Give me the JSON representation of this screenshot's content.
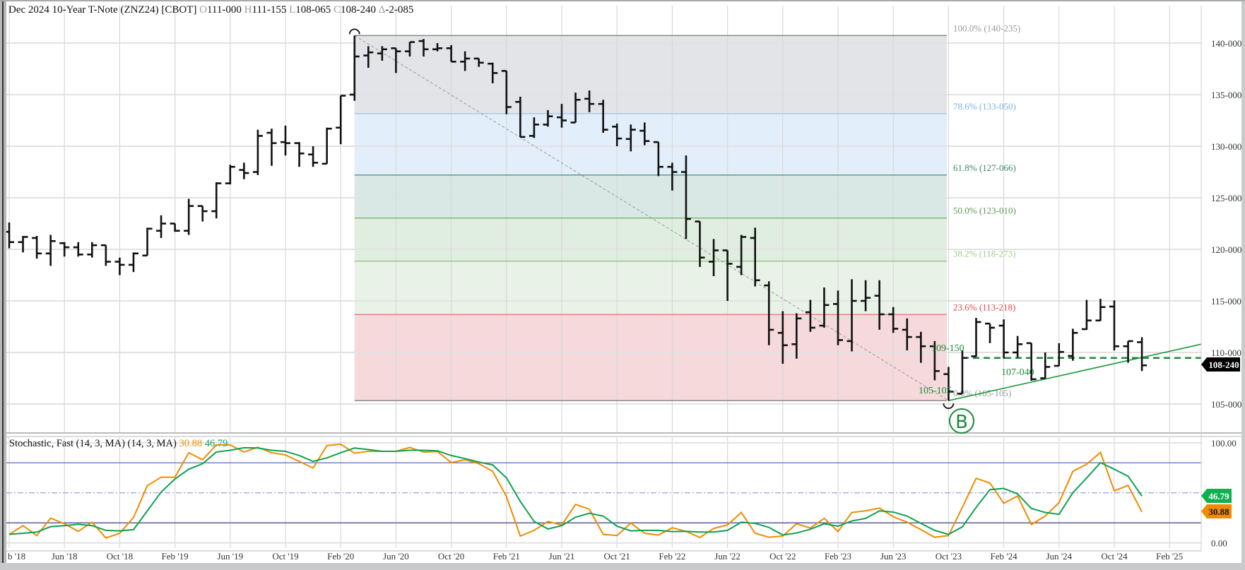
{
  "header": {
    "title": "Dec 2024 10-Year T-Note (ZNZ24) [CBOT]",
    "o_label": "O",
    "o_value": "111-000",
    "h_label": "H",
    "h_value": "111-155",
    "l_label": "L",
    "l_value": "108-065",
    "c_label": "C",
    "c_value": "108-240",
    "d_label": "Δ",
    "d_value": "-2-085"
  },
  "stochastic": {
    "title": "Stochastic, Fast (14, 3, MA)  (14, 3, MA)",
    "k_value": "30.88",
    "d_value": "46.79"
  },
  "price_badge": "108-240",
  "annotations": {
    "dashed_level": "109-150",
    "trend_level": "107-040",
    "low_level": "105-105",
    "marker": "B"
  },
  "colors": {
    "k_line": "#f08c00",
    "d_line": "#10a050",
    "bars": "#111111",
    "annot": "#1a8a3a"
  },
  "chart_data": [
    {
      "type": "ohlc",
      "title": "Dec 2024 10-Year T-Note (ZNZ24) [CBOT]",
      "period": "monthly",
      "first_bar": "Feb '18",
      "x_tick_labels": [
        "b '18",
        "Jun '18",
        "Oct '18",
        "Feb '19",
        "Jun '19",
        "Oct '19",
        "Feb '20",
        "Jun '20",
        "Oct '20",
        "Feb '21",
        "Jun '21",
        "Oct '21",
        "Feb '22",
        "Jun '22",
        "Oct '22",
        "Feb '23",
        "Jun '23",
        "Oct '23",
        "Feb '24",
        "Jun '24",
        "Oct '24",
        "Feb '25"
      ],
      "y_tick_labels": [
        "140-000",
        "135-000",
        "130-000",
        "125-000",
        "120-000",
        "115-000",
        "110-000",
        "105-000"
      ],
      "y_ticks": [
        140,
        135,
        130,
        125,
        120,
        115,
        110,
        105
      ],
      "ylim": [
        102.9,
        143.4
      ],
      "bars_ohlc": [
        [
          121.7,
          122.6,
          120.1,
          120.7
        ],
        [
          120.7,
          121.3,
          119.7,
          121.2
        ],
        [
          121.1,
          121.3,
          119.1,
          119.6
        ],
        [
          119.6,
          121.4,
          118.4,
          120.8
        ],
        [
          120.6,
          120.7,
          119.3,
          120.2
        ],
        [
          120.2,
          120.7,
          119.3,
          119.5
        ],
        [
          119.5,
          120.7,
          119.2,
          120.4
        ],
        [
          120.4,
          120.4,
          118.4,
          118.8
        ],
        [
          118.8,
          119.2,
          117.5,
          118.5
        ],
        [
          118.5,
          119.7,
          117.8,
          119.6
        ],
        [
          119.4,
          122.1,
          119.4,
          122.0
        ],
        [
          121.8,
          123.3,
          121.1,
          122.5
        ],
        [
          122.5,
          122.5,
          121.7,
          121.8
        ],
        [
          121.8,
          124.9,
          121.4,
          124.2
        ],
        [
          124.2,
          124.2,
          122.7,
          123.7
        ],
        [
          123.7,
          126.5,
          123.0,
          126.4
        ],
        [
          126.4,
          128.2,
          126.3,
          128.0
        ],
        [
          127.7,
          128.4,
          126.8,
          127.4
        ],
        [
          127.5,
          131.6,
          127.2,
          131.0
        ],
        [
          131.3,
          131.7,
          128.1,
          130.3
        ],
        [
          130.4,
          132.0,
          129.1,
          130.3
        ],
        [
          130.3,
          130.4,
          128.0,
          129.3
        ],
        [
          129.2,
          130.0,
          128.0,
          128.4
        ],
        [
          128.3,
          131.8,
          128.3,
          131.7
        ],
        [
          131.8,
          134.9,
          130.2,
          134.9
        ],
        [
          135.0,
          140.73,
          134.4,
          138.7
        ],
        [
          138.8,
          139.7,
          137.6,
          139.1
        ],
        [
          139.0,
          139.7,
          138.3,
          139.4
        ],
        [
          139.5,
          139.5,
          137.1,
          139.2
        ],
        [
          139.2,
          140.1,
          138.7,
          140.1
        ],
        [
          140.2,
          140.4,
          138.7,
          139.4
        ],
        [
          139.4,
          140.0,
          139.2,
          139.5
        ],
        [
          139.5,
          139.8,
          138.2,
          138.2
        ],
        [
          138.2,
          139.2,
          137.3,
          138.5
        ],
        [
          138.5,
          138.5,
          137.7,
          138.1
        ],
        [
          138.0,
          138.1,
          136.1,
          137.1
        ],
        [
          137.3,
          137.3,
          133.1,
          133.8
        ],
        [
          134.3,
          134.8,
          130.9,
          130.9
        ],
        [
          131.0,
          132.8,
          130.8,
          132.1
        ],
        [
          132.1,
          133.5,
          131.9,
          132.9
        ],
        [
          132.8,
          134.1,
          131.8,
          132.5
        ],
        [
          132.3,
          135.2,
          132.3,
          134.5
        ],
        [
          134.6,
          135.4,
          133.3,
          134.1
        ],
        [
          134.1,
          134.5,
          131.3,
          131.6
        ],
        [
          131.9,
          132.2,
          130.0,
          130.75
        ],
        [
          130.7,
          132.1,
          129.5,
          131.6
        ],
        [
          131.5,
          132.3,
          130.1,
          130.5
        ],
        [
          130.4,
          130.4,
          127.1,
          128.0
        ],
        [
          128.0,
          128.4,
          125.7,
          127.5
        ],
        [
          127.5,
          129.1,
          121.0,
          122.95
        ],
        [
          122.7,
          122.7,
          118.3,
          119.2
        ],
        [
          118.8,
          121.0,
          117.4,
          119.9
        ],
        [
          119.9,
          119.9,
          115.0,
          118.6
        ],
        [
          118.3,
          121.4,
          117.5,
          121.2
        ],
        [
          121.1,
          122.1,
          116.4,
          117.0
        ],
        [
          116.5,
          116.9,
          110.7,
          112.2
        ],
        [
          111.9,
          114.0,
          108.9,
          110.7
        ],
        [
          110.8,
          113.8,
          109.4,
          113.3
        ],
        [
          113.9,
          115.1,
          112.0,
          112.4
        ],
        [
          112.6,
          116.3,
          112.4,
          114.6
        ],
        [
          114.7,
          116.0,
          110.7,
          111.2
        ],
        [
          111.1,
          117.1,
          110.1,
          115.0
        ],
        [
          115.0,
          117.0,
          114.0,
          115.3
        ],
        [
          115.5,
          117.0,
          112.2,
          113.7
        ],
        [
          113.7,
          114.4,
          111.9,
          112.3
        ],
        [
          112.2,
          113.3,
          110.2,
          111.5
        ],
        [
          111.5,
          112.0,
          109.0,
          110.6
        ],
        [
          110.6,
          111.1,
          107.3,
          108.2
        ],
        [
          107.9,
          108.6,
          105.33,
          106.2
        ],
        [
          106.0,
          110.2,
          106.0,
          109.47
        ],
        [
          109.63,
          113.35,
          109.6,
          112.95
        ],
        [
          112.8,
          112.8,
          110.9,
          112.4
        ],
        [
          112.6,
          113.2,
          109.4,
          110.0
        ],
        [
          110.0,
          111.6,
          109.5,
          110.8
        ],
        [
          110.9,
          110.9,
          107.26,
          107.4
        ],
        [
          107.5,
          110.0,
          107.5,
          108.6
        ],
        [
          108.7,
          110.9,
          108.7,
          110.05
        ],
        [
          109.66,
          112.3,
          109.2,
          111.9
        ],
        [
          112.26,
          115.1,
          112.2,
          113.1
        ],
        [
          113.1,
          115.2,
          113.06,
          114.4
        ],
        [
          114.45,
          115.05,
          110.2,
          110.6
        ],
        [
          110.6,
          111.1,
          109.0,
          111.1
        ],
        [
          111.0,
          111.48,
          108.2,
          108.75
        ]
      ],
      "fibonacci": [
        {
          "label": "100.0% (140-235)",
          "price": 140.734,
          "band": "#e3e4e8",
          "line": "#7a7a80",
          "text": "#9a9a9a"
        },
        {
          "label": "78.6% (133-050)",
          "price": 133.156,
          "band": "#e2eefa",
          "line": "#a8c8ec",
          "text": "#7ab0e0"
        },
        {
          "label": "61.8% (127-066)",
          "price": 127.206,
          "band": "#d9e8e4",
          "line": "#4a9a80",
          "text": "#3a8a6a"
        },
        {
          "label": "50.0% (123-010)",
          "price": 123.031,
          "band": "#e0eedf",
          "line": "#6ab060",
          "text": "#5a9a50"
        },
        {
          "label": "38.2% (118-273)",
          "price": 118.853,
          "band": "#e8f2e7",
          "line": "#8ac080",
          "text": "#a0cc90"
        },
        {
          "label": "23.6% (113-218)",
          "price": 113.68,
          "band": "#f6d9db",
          "line": "#e07070",
          "text": "#e04848"
        },
        {
          "label": "0.0% (105-105)",
          "price": 105.328,
          "band": null,
          "line": "#8a7a80",
          "text": "#9a9a9a"
        }
      ],
      "fib_start_bar": 25,
      "fib_end_bar": 68,
      "dashed_level_price": 109.47,
      "trendline": {
        "from_bar": 68,
        "from_price": 105.33,
        "to_price_at_right": 110.8
      },
      "last_price": 108.75
    },
    {
      "type": "line",
      "title": "Stochastic, Fast (14, 3, MA)",
      "y_tick_labels": [
        "100.00",
        "0.00"
      ],
      "ylim": [
        0,
        100
      ],
      "levels": [
        80,
        50,
        20
      ],
      "series": [
        {
          "name": "%K",
          "color": "#f08c00",
          "values": [
            8.5,
            17.2,
            7.3,
            24.7,
            19.1,
            11.5,
            20.7,
            4.9,
            9.6,
            25.4,
            57.2,
            65.6,
            65.6,
            90.1,
            83.1,
            97.9,
            97.9,
            90.8,
            95.5,
            90.1,
            87.8,
            81.4,
            74.8,
            97.2,
            98.6,
            89.6,
            91.5,
            91.5,
            91.5,
            95.3,
            90.8,
            91.3,
            80.2,
            83.1,
            79.1,
            71.5,
            46.1,
            6.8,
            12.5,
            21.4,
            17.9,
            38.4,
            33.6,
            8.5,
            7.3,
            19.8,
            9.6,
            7.8,
            15.1,
            11.5,
            5.4,
            14.4,
            17.9,
            30.4,
            9.6,
            5.6,
            6.8,
            19.1,
            14.8,
            24.5,
            11.3,
            30.4,
            32.0,
            34.8,
            26.1,
            20.7,
            13.2,
            5.6,
            7.3,
            35.5,
            64.5,
            59.8,
            39.5,
            46.8,
            18.4,
            26.8,
            40.2,
            71.5,
            78.6,
            90.4,
            52.0,
            57.4,
            30.88
          ]
        },
        {
          "name": "%D",
          "color": "#10a050",
          "values": [
            8.5,
            9.6,
            10.8,
            16.2,
            17.2,
            18.6,
            17.2,
            12.5,
            12.0,
            13.2,
            32.0,
            50.8,
            63.8,
            73.6,
            79.1,
            90.8,
            92.5,
            95.1,
            94.8,
            92.5,
            91.5,
            87.3,
            81.4,
            84.9,
            90.1,
            94.8,
            93.2,
            91.5,
            91.5,
            92.5,
            92.5,
            92.0,
            87.3,
            84.2,
            80.7,
            77.9,
            64.9,
            41.4,
            21.4,
            13.9,
            17.2,
            25.6,
            29.6,
            26.8,
            16.7,
            12.0,
            12.5,
            12.5,
            11.3,
            11.5,
            10.8,
            10.8,
            12.5,
            20.7,
            19.5,
            15.5,
            7.8,
            9.9,
            13.6,
            19.1,
            16.7,
            21.9,
            24.5,
            32.0,
            30.8,
            26.8,
            19.5,
            12.5,
            8.5,
            16.0,
            35.5,
            53.2,
            54.4,
            48.9,
            34.4,
            30.4,
            28.5,
            50.1,
            64.9,
            80.2,
            73.6,
            66.6,
            46.79
          ]
        }
      ]
    }
  ]
}
